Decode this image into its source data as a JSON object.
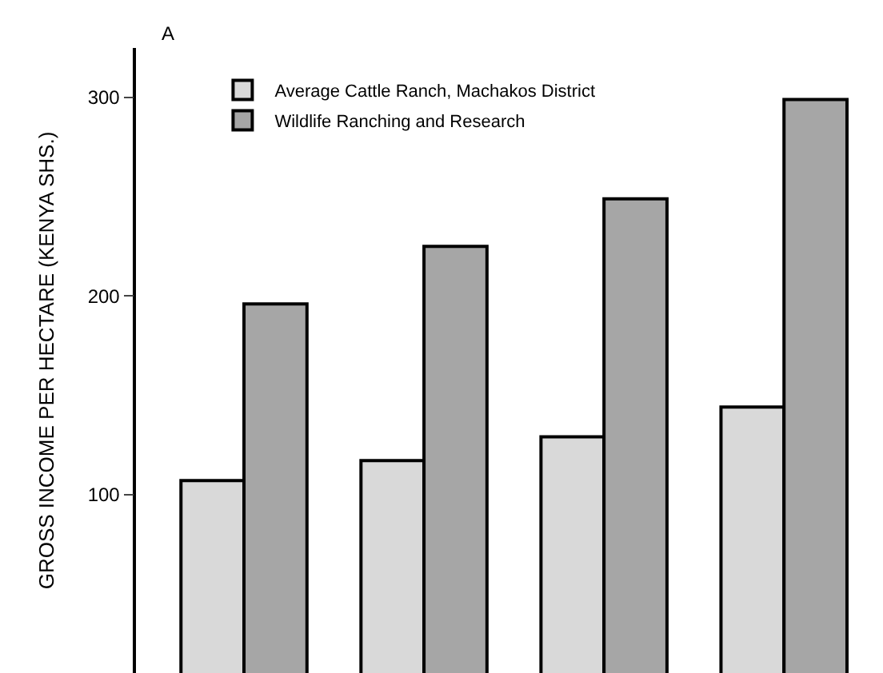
{
  "chart_data": {
    "type": "bar",
    "ylabel": "GROSS INCOME PER HECTARE (KENYA SHS.)",
    "annotations": [
      "A"
    ],
    "categories": [
      null,
      null,
      null,
      null
    ],
    "series": [
      {
        "name": "Average Cattle Ranch, Machakos District",
        "color": "#d9d9d9",
        "values": [
          107,
          117,
          129,
          144
        ]
      },
      {
        "name": "Wildlife Ranching and Research",
        "color": "#a6a6a6",
        "values": [
          196,
          225,
          249,
          299
        ]
      }
    ],
    "ylim": [
      10,
      325
    ],
    "yticks": [
      100,
      200,
      300
    ],
    "grid": false,
    "legend": "top left"
  }
}
